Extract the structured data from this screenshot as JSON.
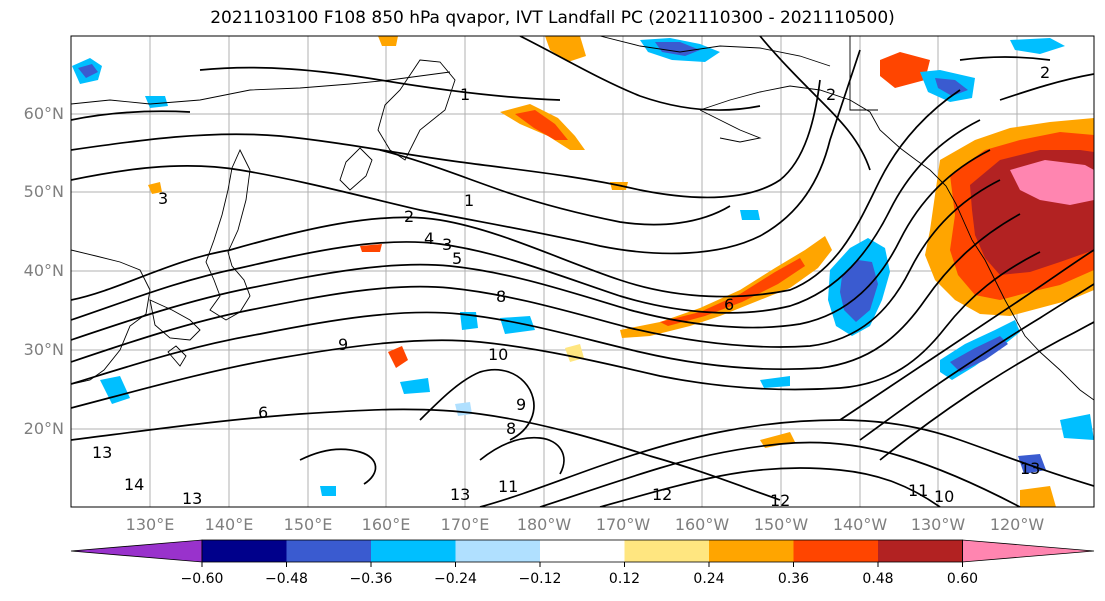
{
  "title": "2021103100 F108 850 hPa qvapor, IVT Landfall PC (2021110300 - 2021110500)",
  "map": {
    "lat_labels": [
      "60°N",
      "50°N",
      "40°N",
      "30°N",
      "20°N"
    ],
    "lon_labels": [
      "130°E",
      "140°E",
      "150°E",
      "160°E",
      "170°E",
      "180°W",
      "170°W",
      "160°W",
      "150°W",
      "140°W",
      "130°W",
      "120°W"
    ],
    "contour_labels": [
      "1",
      "2",
      "1",
      "2",
      "2",
      "3",
      "3",
      "4",
      "5",
      "6",
      "8",
      "6",
      "9",
      "10",
      "9",
      "8",
      "12",
      "13",
      "13",
      "11",
      "12",
      "10",
      "11",
      "13",
      "14",
      "13"
    ]
  },
  "colorbar": {
    "tick_labels": [
      "−0.60",
      "−0.48",
      "−0.36",
      "−0.24",
      "−0.12",
      "0.12",
      "0.24",
      "0.36",
      "0.48",
      "0.60"
    ],
    "colors": [
      "#9932cc",
      "#00008b",
      "#3a5bd0",
      "#00bfff",
      "#b0e0ff",
      "#ffffff",
      "#ffe680",
      "#ffa500",
      "#ff4500",
      "#b22222",
      "#ff85b0"
    ]
  }
}
